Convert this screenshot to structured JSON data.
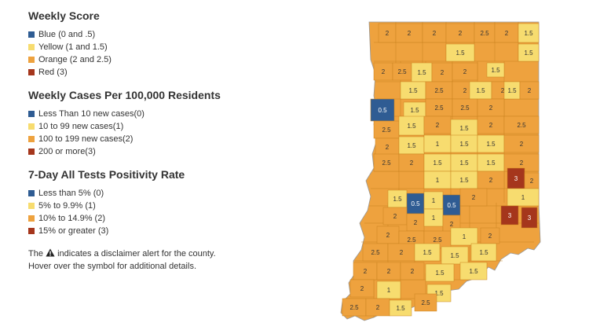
{
  "legend": {
    "weekly_score": {
      "title": "Weekly Score",
      "items": [
        {
          "label": "Blue (0 and .5)",
          "color": "#2f5c93"
        },
        {
          "label": "Yellow (1 and 1.5)",
          "color": "#f7dc6f"
        },
        {
          "label": "Orange (2 and 2.5)",
          "color": "#eea23e"
        },
        {
          "label": "Red (3)",
          "color": "#a5361c"
        }
      ]
    },
    "weekly_cases": {
      "title": "Weekly Cases Per 100,000 Residents",
      "items": [
        {
          "label": "Less Than 10 new cases(0)",
          "color": "#2f5c93"
        },
        {
          "label": "10 to 99 new cases(1)",
          "color": "#f7dc6f"
        },
        {
          "label": "100 to 199 new cases(2)",
          "color": "#eea23e"
        },
        {
          "label": "200 or more(3)",
          "color": "#a5361c"
        }
      ]
    },
    "positivity": {
      "title": "7-Day All Tests Positivity Rate",
      "items": [
        {
          "label": "Less than 5% (0)",
          "color": "#2f5c93"
        },
        {
          "label": "5% to 9.9% (1)",
          "color": "#f7dc6f"
        },
        {
          "label": "10% to 14.9% (2)",
          "color": "#eea23e"
        },
        {
          "label": "15% or greater (3)",
          "color": "#a5361c"
        }
      ]
    },
    "note": {
      "before_icon": "The",
      "after_icon": "indicates a disclaimer alert for the county.",
      "line2": "Hover over the symbol for additional details."
    }
  },
  "map": {
    "outline_color": "#eea23e",
    "counties": [
      {
        "label": "2",
        "level": "orange"
      },
      {
        "label": "2",
        "level": "orange"
      },
      {
        "label": "2",
        "level": "orange"
      },
      {
        "label": "2",
        "level": "orange"
      },
      {
        "label": "2.5",
        "level": "orange"
      },
      {
        "label": "2",
        "level": "orange"
      },
      {
        "label": "1.5",
        "level": "yellow"
      },
      {
        "label": "1.5",
        "level": "yellow"
      },
      {
        "label": "1.5",
        "level": "yellow"
      },
      {
        "label": "2",
        "level": "orange"
      },
      {
        "label": "2.5",
        "level": "orange"
      },
      {
        "label": "1.5",
        "level": "yellow"
      },
      {
        "label": "2",
        "level": "orange"
      },
      {
        "label": "2",
        "level": "orange"
      },
      {
        "label": "1.5",
        "level": "yellow"
      },
      {
        "label": "1.5",
        "level": "yellow"
      },
      {
        "label": "2.5",
        "level": "orange"
      },
      {
        "label": "2",
        "level": "orange"
      },
      {
        "label": "1.5",
        "level": "yellow"
      },
      {
        "label": "2",
        "level": "orange"
      },
      {
        "label": "1.5",
        "level": "yellow"
      },
      {
        "label": "2",
        "level": "orange"
      },
      {
        "label": "0.5",
        "level": "blue"
      },
      {
        "label": "1.5",
        "level": "yellow"
      },
      {
        "label": "2.5",
        "level": "orange"
      },
      {
        "label": "2.5",
        "level": "orange"
      },
      {
        "label": "2",
        "level": "orange"
      },
      {
        "label": "2.5",
        "level": "orange"
      },
      {
        "label": "1.5",
        "level": "yellow"
      },
      {
        "label": "2",
        "level": "orange"
      },
      {
        "label": "1.5",
        "level": "yellow"
      },
      {
        "label": "2",
        "level": "orange"
      },
      {
        "label": "2.5",
        "level": "orange"
      },
      {
        "label": "2",
        "level": "orange"
      },
      {
        "label": "1.5",
        "level": "yellow"
      },
      {
        "label": "1",
        "level": "yellow"
      },
      {
        "label": "1.5",
        "level": "yellow"
      },
      {
        "label": "1.5",
        "level": "yellow"
      },
      {
        "label": "2",
        "level": "orange"
      },
      {
        "label": "2.5",
        "level": "orange"
      },
      {
        "label": "2",
        "level": "orange"
      },
      {
        "label": "1.5",
        "level": "yellow"
      },
      {
        "label": "1.5",
        "level": "yellow"
      },
      {
        "label": "1.5",
        "level": "yellow"
      },
      {
        "label": "2",
        "level": "orange"
      },
      {
        "label": "1",
        "level": "yellow"
      },
      {
        "label": "1.5",
        "level": "yellow"
      },
      {
        "label": "2",
        "level": "orange"
      },
      {
        "label": "3",
        "level": "red"
      },
      {
        "label": "2",
        "level": "orange"
      },
      {
        "label": "1.5",
        "level": "yellow"
      },
      {
        "label": "0.5",
        "level": "blue"
      },
      {
        "label": "1",
        "level": "yellow"
      },
      {
        "label": "0.5",
        "level": "blue"
      },
      {
        "label": "2",
        "level": "orange"
      },
      {
        "label": "1",
        "level": "yellow"
      },
      {
        "label": "2",
        "level": "orange"
      },
      {
        "label": "2",
        "level": "orange"
      },
      {
        "label": "1",
        "level": "yellow"
      },
      {
        "label": "2",
        "level": "orange"
      },
      {
        "label": "3",
        "level": "red"
      },
      {
        "label": "3",
        "level": "red"
      },
      {
        "label": "2",
        "level": "orange"
      },
      {
        "label": "2.5",
        "level": "orange"
      },
      {
        "label": "2.5",
        "level": "orange"
      },
      {
        "label": "1",
        "level": "yellow"
      },
      {
        "label": "2",
        "level": "orange"
      },
      {
        "label": "2.5",
        "level": "orange"
      },
      {
        "label": "2",
        "level": "orange"
      },
      {
        "label": "1.5",
        "level": "yellow"
      },
      {
        "label": "1.5",
        "level": "yellow"
      },
      {
        "label": "1.5",
        "level": "yellow"
      },
      {
        "label": "2",
        "level": "orange"
      },
      {
        "label": "2",
        "level": "orange"
      },
      {
        "label": "2",
        "level": "orange"
      },
      {
        "label": "1.5",
        "level": "yellow"
      },
      {
        "label": "1.5",
        "level": "yellow"
      },
      {
        "label": "2",
        "level": "orange"
      },
      {
        "label": "1",
        "level": "yellow"
      },
      {
        "label": "1.5",
        "level": "yellow"
      },
      {
        "label": "2.5",
        "level": "orange"
      },
      {
        "label": "2",
        "level": "orange"
      },
      {
        "label": "1.5",
        "level": "yellow"
      },
      {
        "label": "2.5",
        "level": "orange"
      }
    ]
  }
}
